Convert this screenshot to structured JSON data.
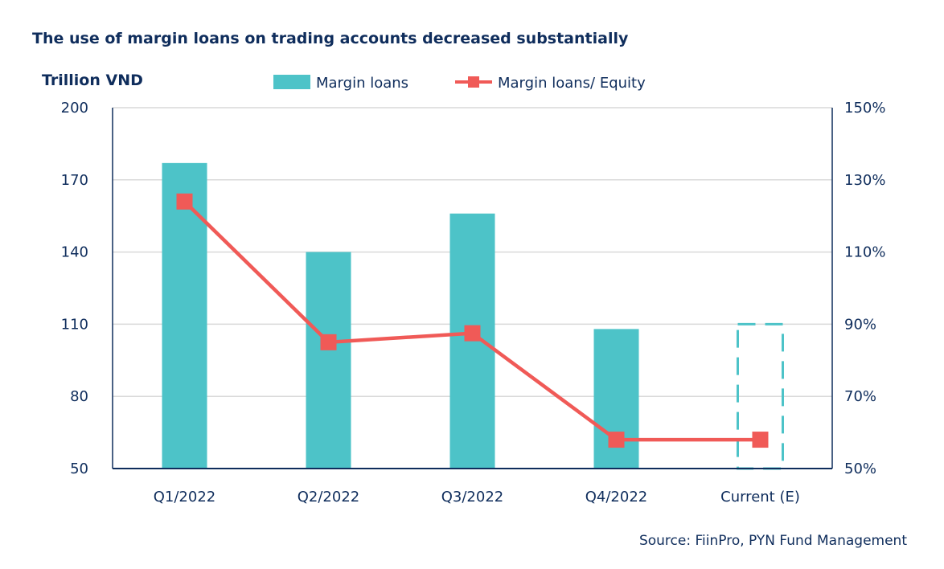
{
  "chart_data": {
    "type": "bar+line",
    "title": "The use of margin loans on trading accounts decreased substantially",
    "ylabel": "Trillion VND",
    "categories": [
      "Q1/2022",
      "Q2/2022",
      "Q3/2022",
      "Q4/2022",
      "Current (E)"
    ],
    "series": [
      {
        "name": "Margin loans",
        "type": "bar",
        "axis": "left",
        "values": [
          177,
          140,
          156,
          108,
          110
        ],
        "estimated": [
          false,
          false,
          false,
          false,
          true
        ],
        "color": "#4dc3c8"
      },
      {
        "name": "Margin loans/ Equity",
        "type": "line",
        "axis": "right",
        "values": [
          124,
          85,
          87.5,
          58,
          58
        ],
        "unit": "%",
        "color": "#f05a57"
      }
    ],
    "left_axis": {
      "ylim": [
        50,
        200
      ],
      "ticks": [
        "50",
        "80",
        "110",
        "140",
        "170",
        "200"
      ]
    },
    "right_axis": {
      "ylim": [
        50,
        150
      ],
      "ticks": [
        "50%",
        "70%",
        "90%",
        "110%",
        "130%",
        "150%"
      ]
    },
    "grid": true,
    "legend": "top-center",
    "source": "Source: FiinPro, PYN Fund Management"
  }
}
